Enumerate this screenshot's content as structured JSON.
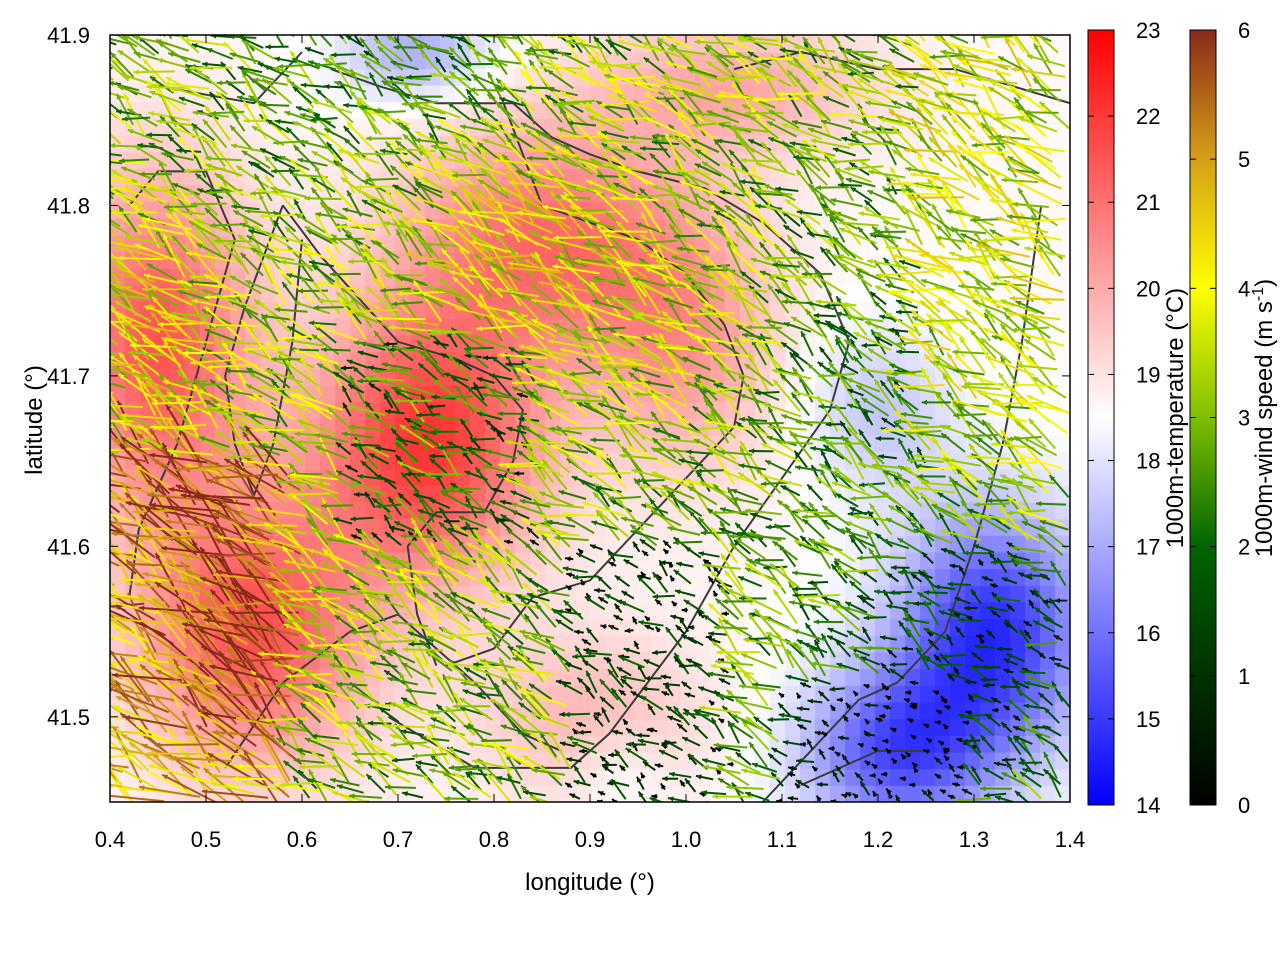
{
  "chart_data": {
    "type": "heatmap",
    "xlabel": "longitude (°)",
    "ylabel": "latitude (°)",
    "xlim": [
      0.4,
      1.4
    ],
    "ylim": [
      41.45,
      41.9
    ],
    "x_ticks": [
      0.4,
      0.5,
      0.6,
      0.7,
      0.8,
      0.9,
      1.0,
      1.1,
      1.2,
      1.3,
      1.4
    ],
    "x_tick_labels": [
      "0.4",
      "0.5",
      "0.6",
      "0.7",
      "0.8",
      "0.9",
      "1.0",
      "1.1",
      "1.2",
      "1.3",
      "1.4"
    ],
    "y_ticks": [
      41.5,
      41.6,
      41.7,
      41.8,
      41.9
    ],
    "y_tick_labels": [
      "41.5",
      "41.6",
      "41.7",
      "41.8",
      "41.9"
    ],
    "temperature_colorbar": {
      "label": "1000m-temperature (°C)",
      "range": [
        14,
        23
      ],
      "ticks": [
        14,
        15,
        16,
        17,
        18,
        19,
        20,
        21,
        22,
        23
      ],
      "tick_labels": [
        "14",
        "15",
        "16",
        "17",
        "18",
        "19",
        "20",
        "21",
        "22",
        "23"
      ],
      "colors": [
        "#0000ff",
        "#ffffff",
        "#ff0000"
      ]
    },
    "wind_colorbar": {
      "label_main": "1000m-wind speed (m s",
      "label_sup": "-1",
      "label_end": ")",
      "range": [
        0,
        6
      ],
      "ticks": [
        0,
        1,
        2,
        3,
        4,
        5,
        6
      ],
      "tick_labels": [
        "0",
        "1",
        "2",
        "3",
        "4",
        "5",
        "6"
      ],
      "colors": [
        "#000000",
        "#006400",
        "#7fbf00",
        "#ffff00",
        "#d4a017",
        "#8b2a1a"
      ]
    },
    "temperature_field_centers": [
      {
        "lon": 0.45,
        "lat": 41.72,
        "temp": 21.5,
        "spread_lon": 0.1,
        "spread_lat": 0.1
      },
      {
        "lon": 0.55,
        "lat": 41.55,
        "temp": 21.5,
        "spread_lon": 0.12,
        "spread_lat": 0.08
      },
      {
        "lon": 0.73,
        "lat": 41.66,
        "temp": 22.0,
        "spread_lon": 0.12,
        "spread_lat": 0.08
      },
      {
        "lon": 0.85,
        "lat": 41.78,
        "temp": 21.0,
        "spread_lon": 0.15,
        "spread_lat": 0.07
      },
      {
        "lon": 1.0,
        "lat": 41.72,
        "temp": 20.2,
        "spread_lon": 0.1,
        "spread_lat": 0.08
      },
      {
        "lon": 1.05,
        "lat": 41.87,
        "temp": 20.0,
        "spread_lon": 0.15,
        "spread_lat": 0.04
      },
      {
        "lon": 0.9,
        "lat": 41.5,
        "temp": 19.8,
        "spread_lon": 0.12,
        "spread_lat": 0.05
      },
      {
        "lon": 1.32,
        "lat": 41.55,
        "temp": 14.8,
        "spread_lon": 0.1,
        "spread_lat": 0.07
      },
      {
        "lon": 1.22,
        "lat": 41.48,
        "temp": 15.5,
        "spread_lon": 0.1,
        "spread_lat": 0.05
      },
      {
        "lon": 1.2,
        "lat": 41.68,
        "temp": 17.5,
        "spread_lon": 0.08,
        "spread_lat": 0.05
      },
      {
        "lon": 0.72,
        "lat": 41.89,
        "temp": 17.0,
        "spread_lon": 0.08,
        "spread_lat": 0.03
      },
      {
        "lon": 0.93,
        "lat": 41.47,
        "temp": 18.0,
        "spread_lon": 0.05,
        "spread_lat": 0.03
      }
    ],
    "contours": [
      [
        [
          0.63,
          41.88
        ],
        [
          0.68,
          41.87
        ],
        [
          0.74,
          41.86
        ],
        [
          0.82,
          41.86
        ],
        [
          0.86,
          41.84
        ],
        [
          0.9,
          41.83
        ],
        [
          0.95,
          41.82
        ],
        [
          1.02,
          41.81
        ],
        [
          1.08,
          41.79
        ],
        [
          1.14,
          41.76
        ],
        [
          1.17,
          41.72
        ],
        [
          1.15,
          41.68
        ],
        [
          1.1,
          41.64
        ],
        [
          1.05,
          41.6
        ],
        [
          1.0,
          41.55
        ],
        [
          0.96,
          41.52
        ],
        [
          0.92,
          41.49
        ],
        [
          0.88,
          41.47
        ],
        [
          0.78,
          41.47
        ],
        [
          0.69,
          41.5
        ]
      ],
      [
        [
          0.81,
          41.86
        ],
        [
          0.85,
          41.8
        ],
        [
          0.9,
          41.79
        ],
        [
          0.95,
          41.78
        ],
        [
          1.0,
          41.76
        ],
        [
          1.04,
          41.73
        ],
        [
          1.06,
          41.7
        ],
        [
          1.05,
          41.67
        ],
        [
          1.0,
          41.64
        ],
        [
          0.95,
          41.61
        ],
        [
          0.9,
          41.58
        ],
        [
          0.84,
          41.57
        ],
        [
          0.8,
          41.54
        ],
        [
          0.75,
          41.53
        ]
      ],
      [
        [
          0.58,
          41.8
        ],
        [
          0.62,
          41.77
        ],
        [
          0.7,
          41.72
        ],
        [
          0.76,
          41.71
        ],
        [
          0.8,
          41.7
        ],
        [
          0.83,
          41.68
        ],
        [
          0.82,
          41.65
        ],
        [
          0.79,
          41.62
        ],
        [
          0.74,
          41.62
        ],
        [
          0.71,
          41.6
        ],
        [
          0.72,
          41.56
        ],
        [
          0.74,
          41.53
        ]
      ],
      [
        [
          0.58,
          41.8
        ],
        [
          0.54,
          41.74
        ],
        [
          0.52,
          41.7
        ],
        [
          0.53,
          41.66
        ],
        [
          0.55,
          41.63
        ],
        [
          0.57,
          41.66
        ],
        [
          0.59,
          41.72
        ],
        [
          0.6,
          41.78
        ]
      ],
      [
        [
          0.42,
          41.8
        ],
        [
          0.45,
          41.82
        ],
        [
          0.5,
          41.82
        ],
        [
          0.53,
          41.78
        ],
        [
          0.5,
          41.72
        ],
        [
          0.47,
          41.66
        ],
        [
          0.43,
          41.61
        ],
        [
          0.42,
          41.57
        ]
      ],
      [
        [
          0.52,
          41.47
        ],
        [
          0.58,
          41.52
        ],
        [
          0.65,
          41.55
        ],
        [
          0.7,
          41.56
        ],
        [
          0.74,
          41.54
        ],
        [
          0.78,
          41.52
        ],
        [
          0.83,
          41.49
        ],
        [
          0.87,
          41.48
        ]
      ],
      [
        [
          1.08,
          41.45
        ],
        [
          1.13,
          41.48
        ],
        [
          1.18,
          41.51
        ],
        [
          1.22,
          41.52
        ],
        [
          1.27,
          41.55
        ],
        [
          1.3,
          41.6
        ],
        [
          1.33,
          41.66
        ],
        [
          1.35,
          41.72
        ],
        [
          1.37,
          41.8
        ]
      ],
      [
        [
          1.12,
          41.46
        ],
        [
          1.2,
          41.48
        ],
        [
          1.25,
          41.48
        ]
      ],
      [
        [
          0.45,
          41.87
        ],
        [
          0.55,
          41.86
        ],
        [
          0.6,
          41.89
        ]
      ],
      [
        [
          1.05,
          41.88
        ],
        [
          1.12,
          41.89
        ],
        [
          1.2,
          41.88
        ],
        [
          1.28,
          41.88
        ],
        [
          1.34,
          41.87
        ],
        [
          1.4,
          41.86
        ]
      ]
    ],
    "wind_vectors": {
      "grid_spacing_lon": 0.016,
      "grid_spacing_lat": 0.0075,
      "prevailing_direction_deg": 150,
      "max_speed": 6.0
    },
    "grid": false,
    "legend": "none"
  }
}
